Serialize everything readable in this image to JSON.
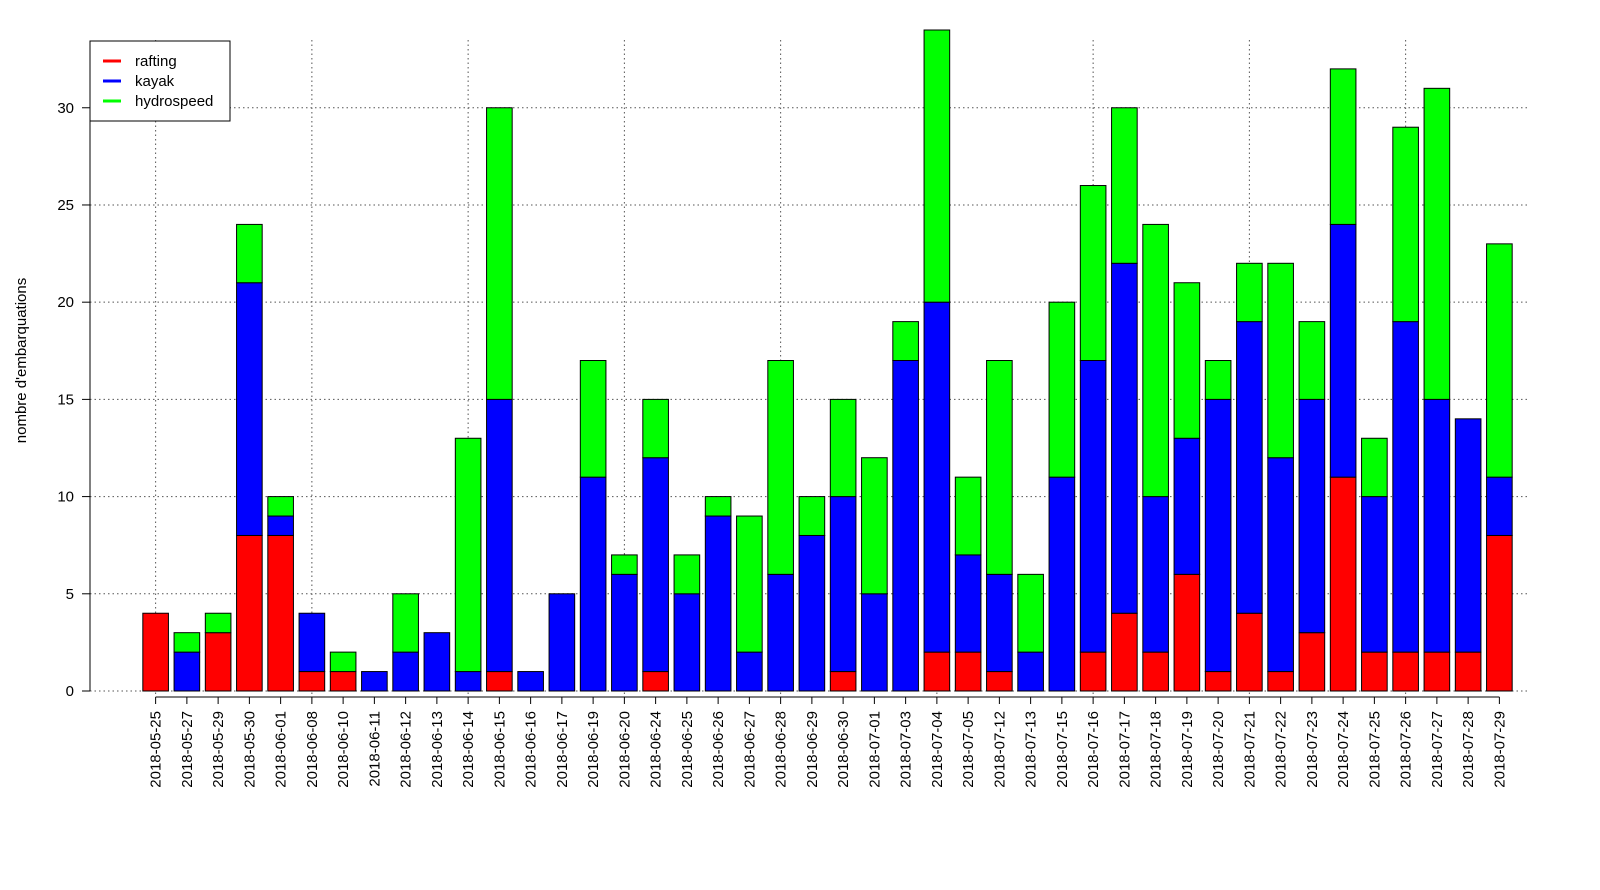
{
  "chart_data": {
    "type": "bar",
    "stacked": true,
    "ylabel": "nombre d'embarquations",
    "ylim": [
      0,
      34
    ],
    "yticks": [
      0,
      5,
      10,
      15,
      20,
      25,
      30
    ],
    "grid": true,
    "legend_position": "top-left",
    "categories": [
      "2018-05-25",
      "2018-05-27",
      "2018-05-29",
      "2018-05-30",
      "2018-06-01",
      "2018-06-08",
      "2018-06-10",
      "2018-06-11",
      "2018-06-12",
      "2018-06-13",
      "2018-06-14",
      "2018-06-15",
      "2018-06-16",
      "2018-06-17",
      "2018-06-19",
      "2018-06-20",
      "2018-06-24",
      "2018-06-25",
      "2018-06-26",
      "2018-06-27",
      "2018-06-28",
      "2018-06-29",
      "2018-06-30",
      "2018-07-01",
      "2018-07-03",
      "2018-07-04",
      "2018-07-05",
      "2018-07-12",
      "2018-07-13",
      "2018-07-15",
      "2018-07-16",
      "2018-07-17",
      "2018-07-18",
      "2018-07-19",
      "2018-07-20",
      "2018-07-21",
      "2018-07-22",
      "2018-07-23",
      "2018-07-24",
      "2018-07-25",
      "2018-07-26",
      "2018-07-27",
      "2018-07-28",
      "2018-07-29"
    ],
    "series": [
      {
        "name": "rafting",
        "color": "#ff0000",
        "values": [
          4,
          0,
          3,
          8,
          8,
          1,
          1,
          0,
          0,
          0,
          0,
          1,
          0,
          0,
          0,
          0,
          1,
          0,
          0,
          0,
          0,
          0,
          1,
          0,
          0,
          2,
          2,
          1,
          0,
          0,
          2,
          4,
          2,
          6,
          1,
          4,
          1,
          3,
          11,
          2,
          2,
          2,
          2,
          8
        ]
      },
      {
        "name": "kayak",
        "color": "#0000ff",
        "values": [
          0,
          2,
          0,
          13,
          1,
          3,
          0,
          1,
          2,
          3,
          1,
          14,
          1,
          5,
          11,
          6,
          11,
          5,
          9,
          2,
          6,
          8,
          9,
          5,
          17,
          18,
          5,
          5,
          2,
          11,
          15,
          18,
          8,
          7,
          14,
          15,
          11,
          12,
          13,
          8,
          17,
          13,
          12,
          3
        ]
      },
      {
        "name": "hydrospeed",
        "color": "#00ff00",
        "values": [
          0,
          1,
          1,
          3,
          1,
          0,
          1,
          0,
          3,
          0,
          12,
          15,
          0,
          0,
          6,
          1,
          3,
          2,
          1,
          7,
          11,
          2,
          5,
          7,
          2,
          14,
          4,
          11,
          4,
          9,
          9,
          8,
          14,
          8,
          2,
          3,
          10,
          4,
          8,
          3,
          10,
          16,
          0,
          12
        ]
      }
    ]
  }
}
